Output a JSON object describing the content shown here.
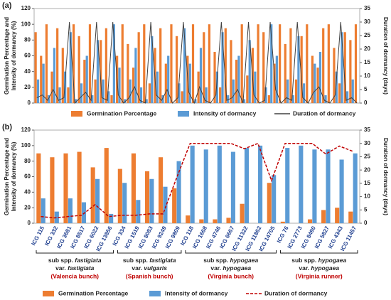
{
  "chart_data": [
    {
      "type": "bar",
      "panel": "(a)",
      "ylabel": [
        "Germination Percentage and",
        "Intensity of dormancy (%)"
      ],
      "y2label": "Duration of dormancy (days)",
      "ylim": [
        0,
        120
      ],
      "yticks": [
        0,
        20,
        40,
        60,
        80,
        100,
        120
      ],
      "y2lim": [
        0,
        35
      ],
      "y2ticks": [
        0,
        5,
        10,
        15,
        20,
        25,
        30,
        35
      ],
      "series": [
        {
          "name": "Germination Percentage",
          "kind": "bar",
          "color": "#ED7D31",
          "values": [
            90,
            60,
            100,
            40,
            95,
            70,
            20,
            100,
            85,
            55,
            100,
            30,
            80,
            95,
            10,
            60,
            100,
            75,
            45,
            90,
            100,
            25,
            70,
            95,
            50,
            100,
            85,
            15,
            60,
            100,
            40,
            90,
            100,
            65,
            20,
            95,
            80,
            55,
            100,
            35,
            70,
            100,
            90,
            10,
            50,
            100,
            75,
            95,
            30,
            85,
            100,
            60,
            45,
            95,
            100,
            70,
            25,
            90,
            80,
            100
          ]
        },
        {
          "name": "Intensity of dormancy",
          "kind": "bar",
          "color": "#5B9BD5",
          "values": [
            30,
            50,
            10,
            70,
            20,
            40,
            90,
            5,
            25,
            60,
            10,
            80,
            30,
            15,
            100,
            45,
            5,
            30,
            70,
            20,
            5,
            85,
            40,
            10,
            60,
            0,
            25,
            95,
            50,
            5,
            70,
            20,
            0,
            40,
            90,
            10,
            30,
            60,
            5,
            80,
            40,
            0,
            20,
            100,
            60,
            0,
            30,
            10,
            85,
            25,
            0,
            50,
            65,
            10,
            0,
            40,
            90,
            15,
            30,
            0
          ]
        },
        {
          "name": "Duration of dormancy",
          "kind": "line",
          "axis": "y2",
          "color": "#404040",
          "dashed": false,
          "values": [
            2,
            3,
            1,
            5,
            1,
            2,
            30,
            0,
            2,
            4,
            1,
            30,
            2,
            1,
            30,
            3,
            0,
            2,
            6,
            1,
            0,
            30,
            3,
            1,
            5,
            0,
            2,
            30,
            4,
            0,
            6,
            1,
            0,
            3,
            30,
            1,
            2,
            5,
            0,
            30,
            3,
            0,
            1,
            30,
            5,
            0,
            2,
            1,
            30,
            2,
            0,
            4,
            6,
            1,
            0,
            3,
            30,
            1,
            2,
            0
          ]
        }
      ]
    },
    {
      "type": "bar",
      "panel": "(b)",
      "ylabel": [
        "Germination Percentage and",
        "Intensity of dormancy (%)"
      ],
      "y2label": "Duration of dormancy (days)",
      "ylim": [
        0,
        120
      ],
      "yticks": [
        0,
        20,
        40,
        60,
        80,
        100,
        120
      ],
      "y2lim": [
        0,
        35
      ],
      "y2ticks": [
        0,
        5,
        10,
        15,
        20,
        25,
        30,
        35
      ],
      "groups": [
        {
          "subsp": [
            "sub spp.",
            "fastigiata"
          ],
          "var": [
            "var.",
            "fastigiata"
          ],
          "type": "(Valencia bunch)",
          "categories": [
            "ICG 115",
            "ICG 332",
            "ICG 3681",
            "ICG 8517",
            "ICG 6022",
            "ICG 13856"
          ]
        },
        {
          "subsp": [
            "sub spp.",
            "fastigiata"
          ],
          "var": [
            "var.",
            "vulgaris"
          ],
          "type": "(Spanish bunch)",
          "categories": [
            "ICG 334",
            "ICG 1519",
            "ICG 8083",
            "ICG 9249",
            "ICG 9809"
          ]
        },
        {
          "subsp": [
            "sub spp.",
            "hypogaea"
          ],
          "var": [
            "var.",
            "hypogaea"
          ],
          "type": "(Virginia bunch)",
          "categories": [
            "ICG 118",
            "ICG 1668",
            "ICG 4746",
            "ICG 6667",
            "ICG 11322",
            "ICG 11862",
            "ICG 14705"
          ]
        },
        {
          "subsp": [
            "sub spp.",
            "hypogaea"
          ],
          "var": [
            "var.",
            "hypogaea"
          ],
          "type": "(Virginia runner)",
          "categories": [
            "ICG 76",
            "ICG 2773",
            "ICG 8490",
            "ICG 5827",
            "ICG 4343",
            "ICG 11457"
          ]
        }
      ],
      "series": [
        {
          "name": "Germination Percentage",
          "kind": "bar",
          "color": "#ED7D31",
          "values": [
            90,
            85,
            90,
            92,
            72,
            97,
            70,
            90,
            67,
            85,
            45,
            10,
            5,
            5,
            7,
            25,
            0,
            52,
            2,
            0,
            5,
            17,
            20,
            15
          ]
        },
        {
          "name": "Intensity of dormancy",
          "kind": "bar",
          "color": "#5B9BD5",
          "values": [
            32,
            15,
            32,
            27,
            57,
            12,
            52,
            30,
            57,
            47,
            80,
            100,
            95,
            100,
            92,
            97,
            100,
            62,
            97,
            100,
            95,
            95,
            82,
            90
          ]
        },
        {
          "name": "Duration of dormancy",
          "kind": "line",
          "axis": "y2",
          "color": "#C00000",
          "dashed": true,
          "values": [
            2.5,
            2,
            2.5,
            3,
            7,
            2.5,
            3,
            3,
            3.5,
            3.5,
            17,
            30,
            30,
            30,
            30,
            28,
            30,
            16,
            30,
            30,
            30,
            26,
            29,
            27
          ]
        }
      ]
    }
  ]
}
